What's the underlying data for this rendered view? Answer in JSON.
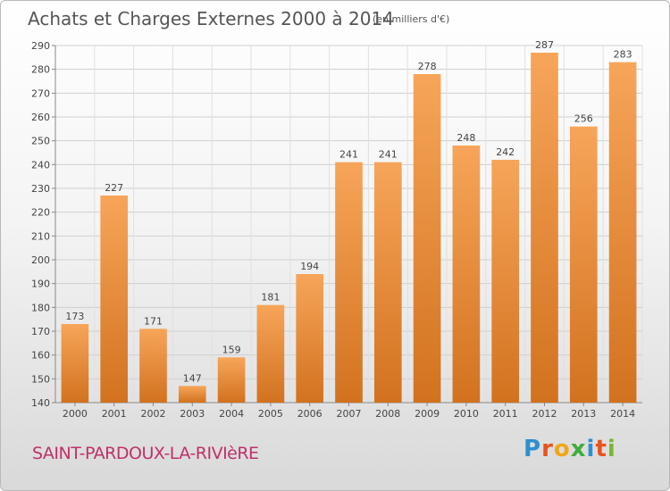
{
  "header": {
    "title": "Achats et Charges Externes 2000 à 2014",
    "subtitle": "(en milliers d'€)"
  },
  "footer": {
    "commune": "SAINT-PARDOUX-LA-RIVIèRE",
    "logo_letters": [
      "P",
      "r",
      "o",
      "x",
      "i",
      "t",
      "i"
    ],
    "logo_colors": [
      "#2e8fd0",
      "#e8531e",
      "#f2a516",
      "#3fae3a",
      "#2e8fd0",
      "#e8531e",
      "#7bb634"
    ]
  },
  "chart_data": {
    "type": "bar",
    "title": "Achats et Charges Externes 2000 à 2014",
    "subtitle": "(en milliers d'€)",
    "xlabel": "",
    "ylabel": "",
    "categories": [
      "2000",
      "2001",
      "2002",
      "2003",
      "2004",
      "2005",
      "2006",
      "2007",
      "2008",
      "2009",
      "2010",
      "2011",
      "2012",
      "2013",
      "2014"
    ],
    "values": [
      173,
      227,
      171,
      147,
      159,
      181,
      194,
      241,
      241,
      278,
      248,
      242,
      287,
      256,
      283
    ],
    "ylim": [
      140,
      290
    ],
    "yticks": [
      140,
      150,
      160,
      170,
      180,
      190,
      200,
      210,
      220,
      230,
      240,
      250,
      260,
      270,
      280,
      290
    ],
    "grid": true,
    "bar_color_top": "#f7a55a",
    "bar_color_bottom": "#d2721e"
  }
}
